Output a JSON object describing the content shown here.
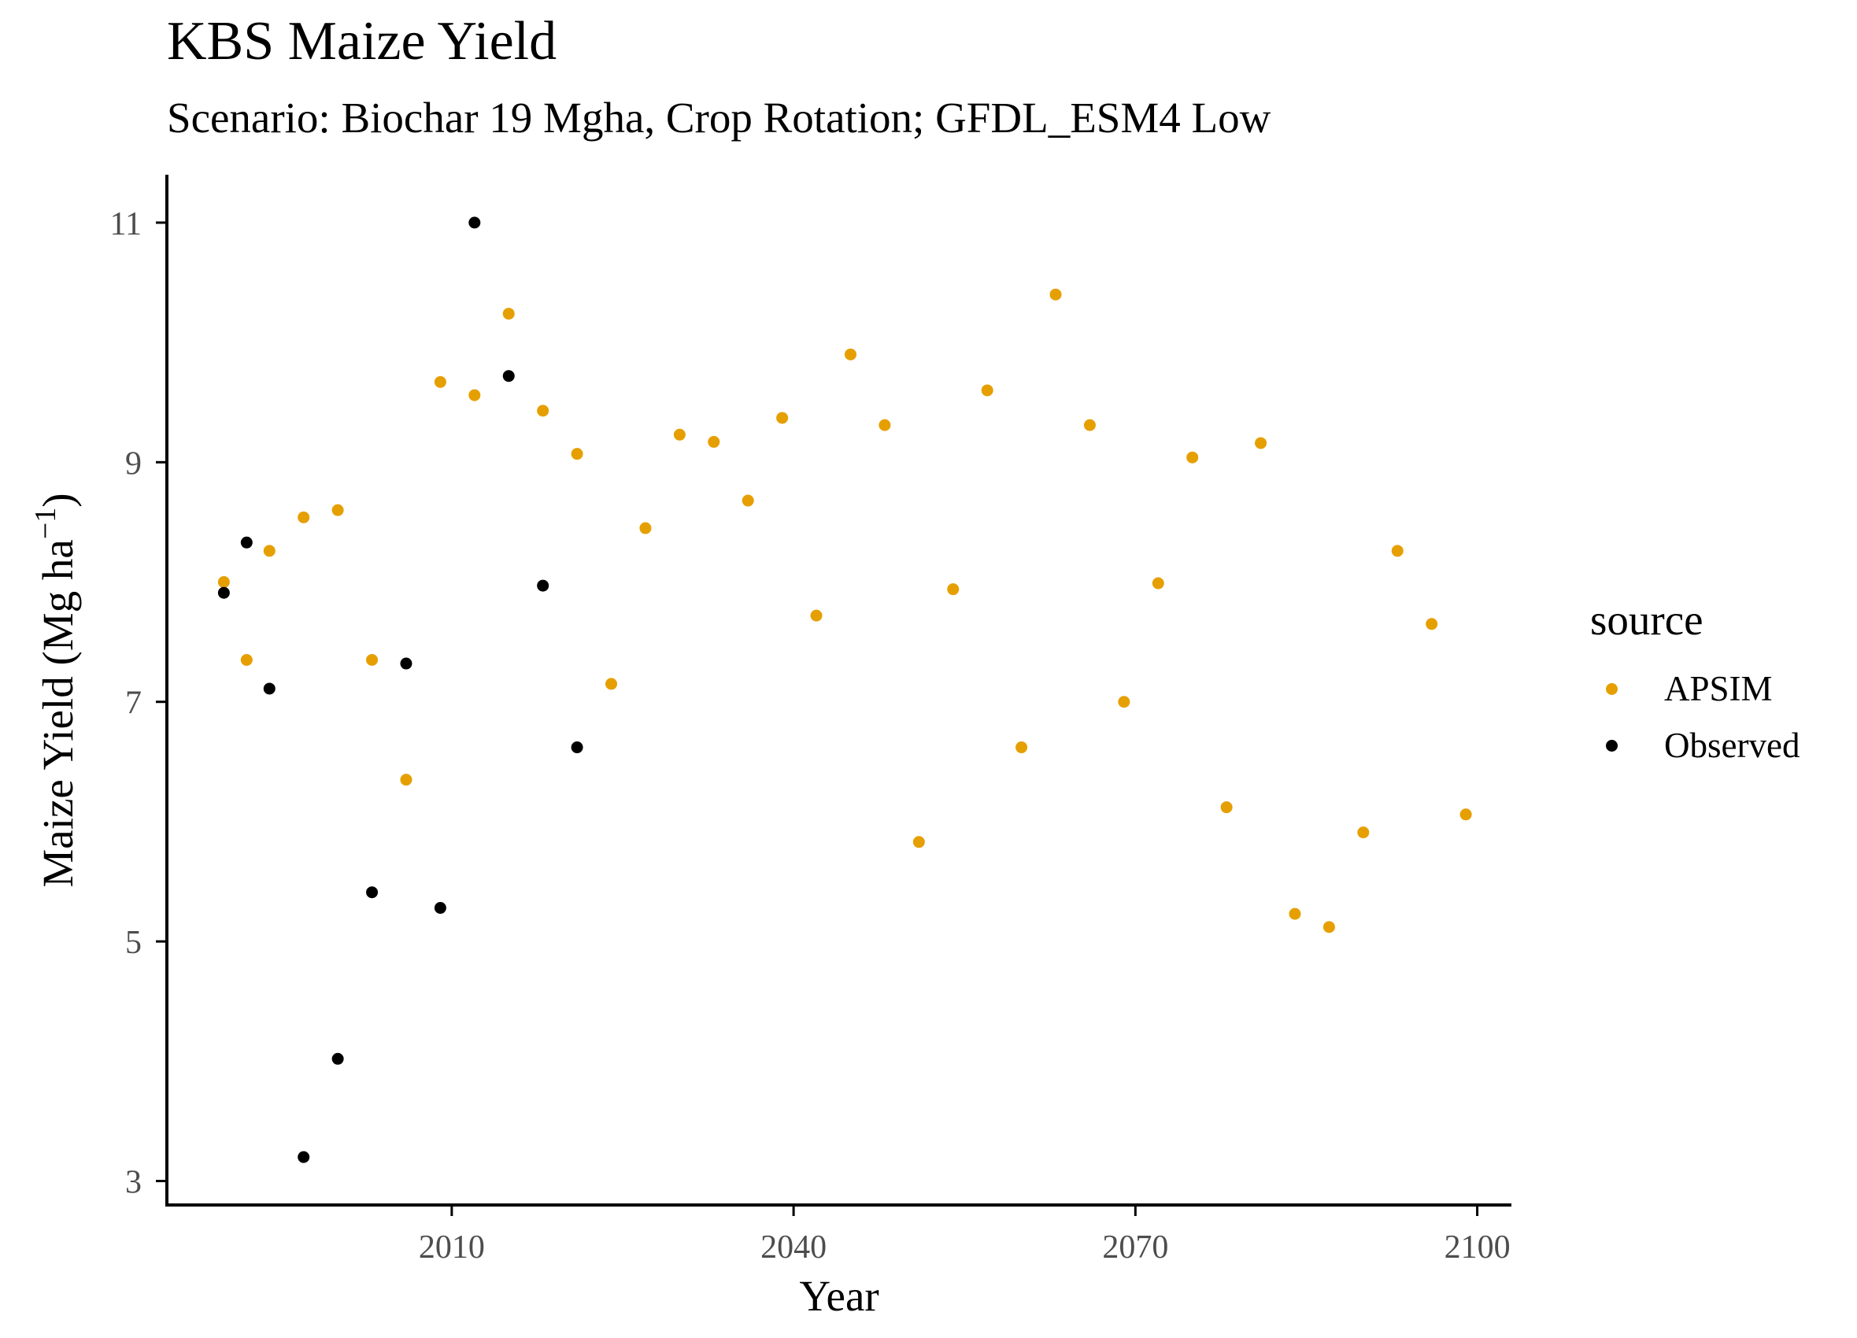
{
  "chart_data": {
    "type": "scatter",
    "title": "KBS Maize Yield",
    "subtitle": "Scenario: Biochar 19 Mgha, Crop Rotation; GFDL_ESM4 Low",
    "xlabel": "Year",
    "ylabel": "Maize Yield (Mg ha",
    "ylabel_superscript": "−1",
    "ylabel_suffix": ")",
    "xlim": [
      1985,
      2103
    ],
    "ylim": [
      2.8,
      11.4
    ],
    "x_ticks": [
      2010,
      2040,
      2070,
      2100
    ],
    "y_ticks": [
      3,
      5,
      7,
      9,
      11
    ],
    "grid": false,
    "legend": {
      "title": "source",
      "position": "right"
    },
    "series": [
      {
        "name": "APSIM",
        "color": "#E69F00",
        "points": [
          [
            1990,
            8.0
          ],
          [
            1992,
            7.35
          ],
          [
            1994,
            8.26
          ],
          [
            1997,
            8.54
          ],
          [
            2000,
            8.6
          ],
          [
            2003,
            7.35
          ],
          [
            2006,
            6.35
          ],
          [
            2009,
            9.67
          ],
          [
            2012,
            9.56
          ],
          [
            2015,
            10.24
          ],
          [
            2018,
            9.43
          ],
          [
            2021,
            9.07
          ],
          [
            2024,
            7.15
          ],
          [
            2027,
            8.45
          ],
          [
            2030,
            9.23
          ],
          [
            2033,
            9.17
          ],
          [
            2036,
            8.68
          ],
          [
            2039,
            9.37
          ],
          [
            2042,
            7.72
          ],
          [
            2045,
            9.9
          ],
          [
            2048,
            9.31
          ],
          [
            2051,
            5.83
          ],
          [
            2054,
            7.94
          ],
          [
            2057,
            9.6
          ],
          [
            2060,
            6.62
          ],
          [
            2063,
            10.4
          ],
          [
            2066,
            9.31
          ],
          [
            2069,
            7.0
          ],
          [
            2072,
            7.99
          ],
          [
            2075,
            9.04
          ],
          [
            2078,
            6.12
          ],
          [
            2081,
            9.16
          ],
          [
            2084,
            5.23
          ],
          [
            2087,
            5.12
          ],
          [
            2090,
            5.91
          ],
          [
            2093,
            8.26
          ],
          [
            2096,
            7.65
          ],
          [
            2099,
            6.06
          ]
        ]
      },
      {
        "name": "Observed",
        "color": "#000000",
        "points": [
          [
            1990,
            7.91
          ],
          [
            1992,
            8.33
          ],
          [
            1994,
            7.11
          ],
          [
            1997,
            3.2
          ],
          [
            2000,
            4.02
          ],
          [
            2003,
            5.41
          ],
          [
            2006,
            7.32
          ],
          [
            2009,
            5.28
          ],
          [
            2012,
            11.0
          ],
          [
            2015,
            9.72
          ],
          [
            2018,
            7.97
          ],
          [
            2021,
            6.62
          ]
        ]
      }
    ]
  }
}
